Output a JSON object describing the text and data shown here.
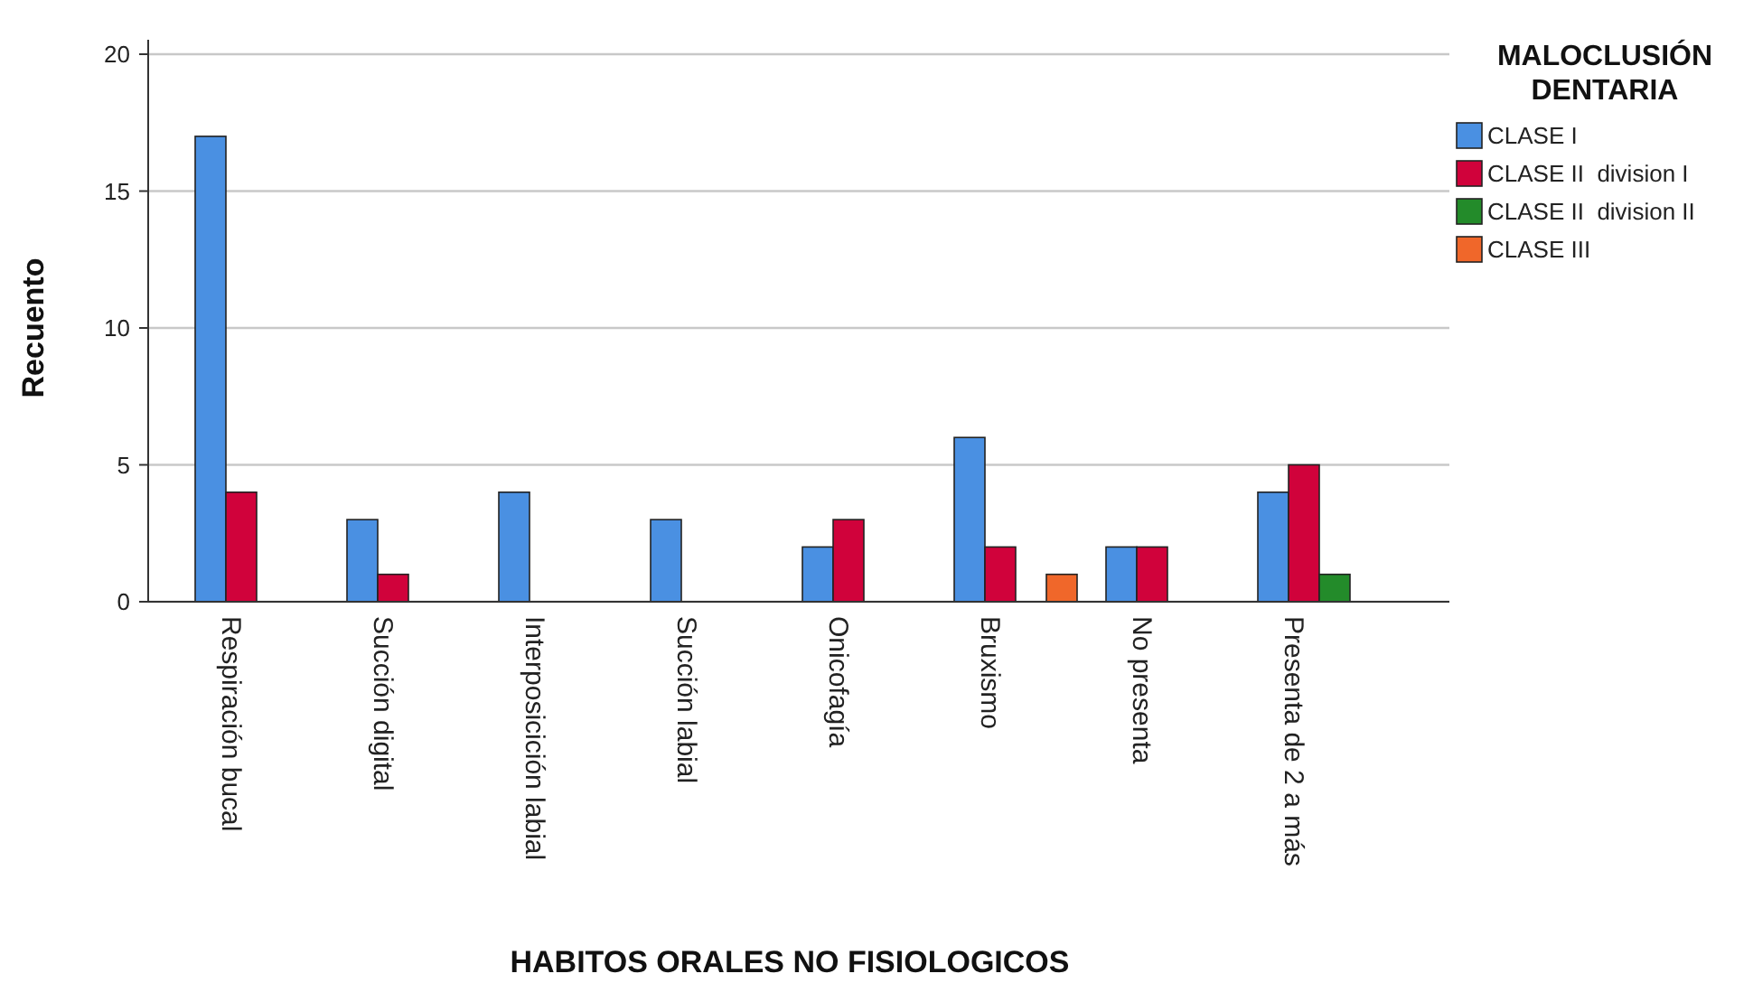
{
  "chart_data": {
    "type": "bar",
    "xlabel": "HABITOS ORALES NO FISIOLOGICOS",
    "ylabel": "Recuento",
    "legend_title": "MALOCLUSIÓN DENTARIA",
    "categories": [
      "Respiración bucal",
      "Succión digital",
      "Interposicición labial",
      "Succión labial",
      "Onicofagía",
      "Bruxismo",
      "No presenta",
      "Presenta de 2 a más"
    ],
    "series": [
      {
        "name": "CLASE I",
        "color": "#4a90e2",
        "values": [
          17,
          3,
          4,
          3,
          2,
          6,
          2,
          4
        ]
      },
      {
        "name": "CLASE II  division I",
        "color": "#d0023b",
        "values": [
          4,
          1,
          0,
          0,
          3,
          2,
          2,
          5
        ]
      },
      {
        "name": "CLASE II  division II",
        "color": "#238b2a",
        "values": [
          0,
          0,
          0,
          0,
          0,
          0,
          0,
          1
        ]
      },
      {
        "name": "CLASE III",
        "color": "#f0672a",
        "values": [
          0,
          0,
          0,
          0,
          0,
          1,
          0,
          0
        ]
      }
    ],
    "ylim": [
      0,
      20
    ],
    "yticks": [
      0,
      5,
      10,
      15,
      20
    ],
    "grid": "y",
    "legend": "top right"
  }
}
